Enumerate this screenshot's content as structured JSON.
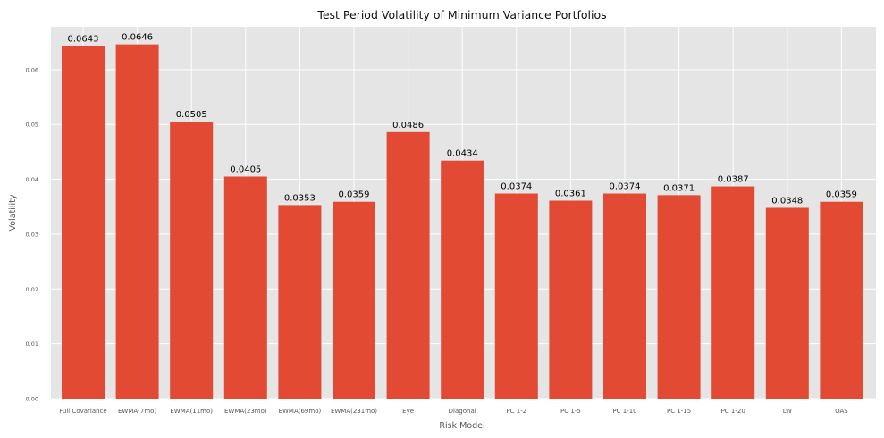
{
  "chart_data": {
    "type": "bar",
    "title": "Test Period Volatility of Minimum Variance Portfolios",
    "xlabel": "Risk Model",
    "ylabel": "Volatility",
    "categories": [
      "Full Covariance",
      "EWMA(7mo)",
      "EWMA(11mo)",
      "EWMA(23mo)",
      "EWMA(69mo)",
      "EWMA(231mo)",
      "Eye",
      "Diagonal",
      "PC 1-2",
      "PC 1-5",
      "PC 1-10",
      "PC 1-15",
      "PC 1-20",
      "LW",
      "OAS"
    ],
    "values": [
      0.0643,
      0.0646,
      0.0505,
      0.0405,
      0.0353,
      0.0359,
      0.0486,
      0.0434,
      0.0374,
      0.0361,
      0.0374,
      0.0371,
      0.0387,
      0.0348,
      0.0359
    ],
    "data_labels": [
      "0.0643",
      "0.0646",
      "0.0505",
      "0.0405",
      "0.0353",
      "0.0359",
      "0.0486",
      "0.0434",
      "0.0374",
      "0.0361",
      "0.0374",
      "0.0371",
      "0.0387",
      "0.0348",
      "0.0359"
    ],
    "yticks": [
      0,
      0.01,
      0.02,
      0.03,
      0.04,
      0.05,
      0.06
    ],
    "ytick_labels": [
      "0.00",
      "0.01",
      "0.02",
      "0.03",
      "0.04",
      "0.05",
      "0.06"
    ],
    "ylim": [
      0,
      0.0678
    ],
    "grid": true,
    "colors": {
      "bar": "#e24a33",
      "plot_background": "#e5e5e5",
      "grid": "#ffffff"
    }
  }
}
